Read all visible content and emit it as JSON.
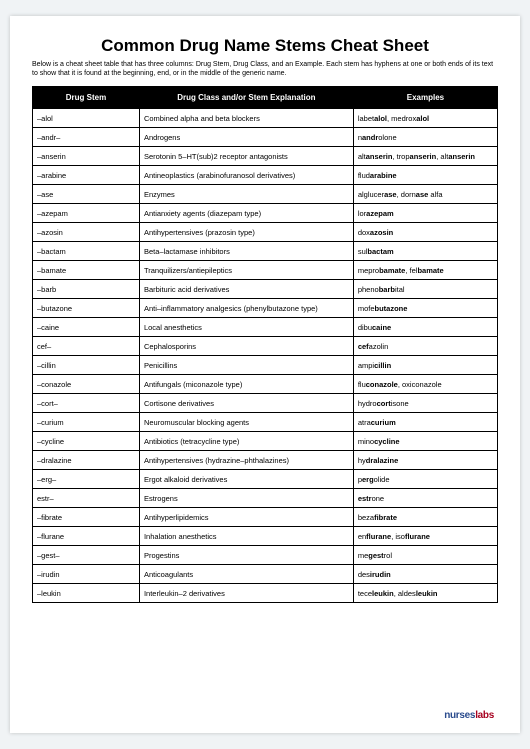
{
  "title": "Common Drug Name Stems Cheat Sheet",
  "intro": "Below is a cheat sheet table that has three columns: Drug Stem, Drug Class, and an Example. Each stem has hyphens at one or both ends of its text to show that it is found at the beginning, end, or in the middle of the generic name.",
  "headers": {
    "c1": "Drug Stem",
    "c2": "Drug Class and/or Stem Explanation",
    "c3": "Examples"
  },
  "rows": [
    {
      "stem": "–alol",
      "cls": "Combined alpha and beta blockers",
      "ex": "labet<b>alol</b>, medrox<b>alol</b>"
    },
    {
      "stem": "–andr–",
      "cls": "Androgens",
      "ex": "n<b>andr</b>olone"
    },
    {
      "stem": "–anserin",
      "cls": "Serotonin 5–HT(sub)2 receptor antagonists",
      "ex": "alt<b>anserin</b>, trop<b>anserin</b>, alt<b>anserin</b>"
    },
    {
      "stem": "–arabine",
      "cls": "Antineoplastics (arabinofuranosol derivatives)",
      "ex": "flud<b>arabine</b>"
    },
    {
      "stem": "–ase",
      "cls": "Enzymes",
      "ex": "alglucer<b>ase</b>, dorn<b>ase</b> alfa"
    },
    {
      "stem": "–azepam",
      "cls": "Antianxiety agents (diazepam type)",
      "ex": "lor<b>azepam</b>"
    },
    {
      "stem": "–azosin",
      "cls": "Antihypertensives (prazosin type)",
      "ex": "dox<b>azosin</b>"
    },
    {
      "stem": "–bactam",
      "cls": "Beta–lactamase inhibitors",
      "ex": "sul<b>bactam</b>"
    },
    {
      "stem": "–bamate",
      "cls": "Tranquilizers/antiepileptics",
      "ex": "mepro<b>bamate</b>, fel<b>bamate</b>"
    },
    {
      "stem": "–barb",
      "cls": "Barbituric acid derivatives",
      "ex": "pheno<b>barb</b>ital"
    },
    {
      "stem": "–butazone",
      "cls": "Anti–inflammatory analgesics (phenylbutazone type)",
      "ex": "mofe<b>butazone</b>"
    },
    {
      "stem": "–caine",
      "cls": "Local anesthetics",
      "ex": "dibu<b>caine</b>"
    },
    {
      "stem": "cef–",
      "cls": "Cephalosporins",
      "ex": "<b>cef</b>azolin"
    },
    {
      "stem": "–cillin",
      "cls": "Penicillins",
      "ex": "ampi<b>cillin</b>"
    },
    {
      "stem": "–conazole",
      "cls": "Antifungals (miconazole type)",
      "ex": "flu<b>conazole</b>, oxiconazole"
    },
    {
      "stem": "–cort–",
      "cls": "Cortisone derivatives",
      "ex": "hydro<b>cort</b>isone"
    },
    {
      "stem": "–curium",
      "cls": "Neuromuscular blocking agents",
      "ex": "atra<b>curium</b>"
    },
    {
      "stem": "–cycline",
      "cls": "Antibiotics (tetracycline type)",
      "ex": "mino<b>cycline</b>"
    },
    {
      "stem": "–dralazine",
      "cls": "Antihypertensives (hydrazine–phthalazines)",
      "ex": "hy<b>dralazine</b>"
    },
    {
      "stem": "–erg–",
      "cls": "Ergot alkaloid derivatives",
      "ex": "p<b>erg</b>olide"
    },
    {
      "stem": "estr–",
      "cls": "Estrogens",
      "ex": "<b>estr</b>one"
    },
    {
      "stem": "–fibrate",
      "cls": "Antihyperlipidemics",
      "ex": "beza<b>fibrate</b>"
    },
    {
      "stem": "–flurane",
      "cls": "Inhalation anesthetics",
      "ex": "en<b>flurane</b>, iso<b>flurane</b>"
    },
    {
      "stem": "–gest–",
      "cls": "Progestins",
      "ex": "me<b>gest</b>rol"
    },
    {
      "stem": "–irudin",
      "cls": "Anticoagulants",
      "ex": "des<b>irudin</b>"
    },
    {
      "stem": "–leukin",
      "cls": "Interleukin–2 derivatives",
      "ex": "tece<b>leukin</b>, aldes<b>leukin</b>"
    }
  ],
  "logo": {
    "pre": "nurses",
    "post": "labs"
  },
  "colors": {
    "header_bg": "#000000",
    "header_fg": "#ffffff",
    "border": "#000000",
    "page_bg": "#ffffff",
    "body_bg": "#f0f3f5",
    "logo_blue": "#2a4b8d",
    "logo_red": "#a7001f"
  }
}
